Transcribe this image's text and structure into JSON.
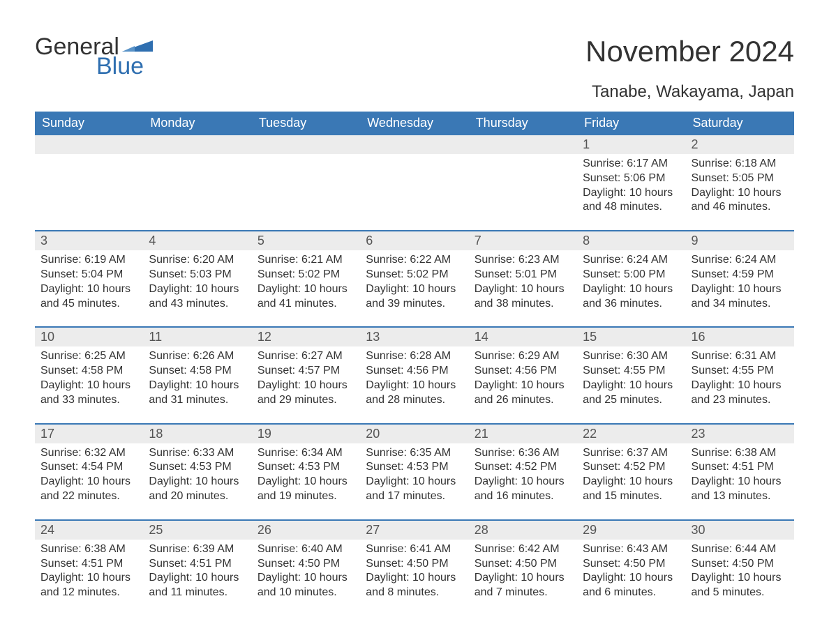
{
  "logo": {
    "text_top": "General",
    "text_bottom": "Blue"
  },
  "title": "November 2024",
  "subtitle": "Tanabe, Wakayama, Japan",
  "colors": {
    "header_bg": "#3a78b5",
    "header_text": "#ffffff",
    "daynum_bg": "#ececec",
    "divider": "#3a78b5",
    "logo_blue": "#2f6fb0",
    "body_text": "#333333"
  },
  "day_headers": [
    "Sunday",
    "Monday",
    "Tuesday",
    "Wednesday",
    "Thursday",
    "Friday",
    "Saturday"
  ],
  "weeks": [
    [
      null,
      null,
      null,
      null,
      null,
      {
        "day": "1",
        "sunrise": "Sunrise: 6:17 AM",
        "sunset": "Sunset: 5:06 PM",
        "daylight1": "Daylight: 10 hours",
        "daylight2": "and 48 minutes."
      },
      {
        "day": "2",
        "sunrise": "Sunrise: 6:18 AM",
        "sunset": "Sunset: 5:05 PM",
        "daylight1": "Daylight: 10 hours",
        "daylight2": "and 46 minutes."
      }
    ],
    [
      {
        "day": "3",
        "sunrise": "Sunrise: 6:19 AM",
        "sunset": "Sunset: 5:04 PM",
        "daylight1": "Daylight: 10 hours",
        "daylight2": "and 45 minutes."
      },
      {
        "day": "4",
        "sunrise": "Sunrise: 6:20 AM",
        "sunset": "Sunset: 5:03 PM",
        "daylight1": "Daylight: 10 hours",
        "daylight2": "and 43 minutes."
      },
      {
        "day": "5",
        "sunrise": "Sunrise: 6:21 AM",
        "sunset": "Sunset: 5:02 PM",
        "daylight1": "Daylight: 10 hours",
        "daylight2": "and 41 minutes."
      },
      {
        "day": "6",
        "sunrise": "Sunrise: 6:22 AM",
        "sunset": "Sunset: 5:02 PM",
        "daylight1": "Daylight: 10 hours",
        "daylight2": "and 39 minutes."
      },
      {
        "day": "7",
        "sunrise": "Sunrise: 6:23 AM",
        "sunset": "Sunset: 5:01 PM",
        "daylight1": "Daylight: 10 hours",
        "daylight2": "and 38 minutes."
      },
      {
        "day": "8",
        "sunrise": "Sunrise: 6:24 AM",
        "sunset": "Sunset: 5:00 PM",
        "daylight1": "Daylight: 10 hours",
        "daylight2": "and 36 minutes."
      },
      {
        "day": "9",
        "sunrise": "Sunrise: 6:24 AM",
        "sunset": "Sunset: 4:59 PM",
        "daylight1": "Daylight: 10 hours",
        "daylight2": "and 34 minutes."
      }
    ],
    [
      {
        "day": "10",
        "sunrise": "Sunrise: 6:25 AM",
        "sunset": "Sunset: 4:58 PM",
        "daylight1": "Daylight: 10 hours",
        "daylight2": "and 33 minutes."
      },
      {
        "day": "11",
        "sunrise": "Sunrise: 6:26 AM",
        "sunset": "Sunset: 4:58 PM",
        "daylight1": "Daylight: 10 hours",
        "daylight2": "and 31 minutes."
      },
      {
        "day": "12",
        "sunrise": "Sunrise: 6:27 AM",
        "sunset": "Sunset: 4:57 PM",
        "daylight1": "Daylight: 10 hours",
        "daylight2": "and 29 minutes."
      },
      {
        "day": "13",
        "sunrise": "Sunrise: 6:28 AM",
        "sunset": "Sunset: 4:56 PM",
        "daylight1": "Daylight: 10 hours",
        "daylight2": "and 28 minutes."
      },
      {
        "day": "14",
        "sunrise": "Sunrise: 6:29 AM",
        "sunset": "Sunset: 4:56 PM",
        "daylight1": "Daylight: 10 hours",
        "daylight2": "and 26 minutes."
      },
      {
        "day": "15",
        "sunrise": "Sunrise: 6:30 AM",
        "sunset": "Sunset: 4:55 PM",
        "daylight1": "Daylight: 10 hours",
        "daylight2": "and 25 minutes."
      },
      {
        "day": "16",
        "sunrise": "Sunrise: 6:31 AM",
        "sunset": "Sunset: 4:55 PM",
        "daylight1": "Daylight: 10 hours",
        "daylight2": "and 23 minutes."
      }
    ],
    [
      {
        "day": "17",
        "sunrise": "Sunrise: 6:32 AM",
        "sunset": "Sunset: 4:54 PM",
        "daylight1": "Daylight: 10 hours",
        "daylight2": "and 22 minutes."
      },
      {
        "day": "18",
        "sunrise": "Sunrise: 6:33 AM",
        "sunset": "Sunset: 4:53 PM",
        "daylight1": "Daylight: 10 hours",
        "daylight2": "and 20 minutes."
      },
      {
        "day": "19",
        "sunrise": "Sunrise: 6:34 AM",
        "sunset": "Sunset: 4:53 PM",
        "daylight1": "Daylight: 10 hours",
        "daylight2": "and 19 minutes."
      },
      {
        "day": "20",
        "sunrise": "Sunrise: 6:35 AM",
        "sunset": "Sunset: 4:53 PM",
        "daylight1": "Daylight: 10 hours",
        "daylight2": "and 17 minutes."
      },
      {
        "day": "21",
        "sunrise": "Sunrise: 6:36 AM",
        "sunset": "Sunset: 4:52 PM",
        "daylight1": "Daylight: 10 hours",
        "daylight2": "and 16 minutes."
      },
      {
        "day": "22",
        "sunrise": "Sunrise: 6:37 AM",
        "sunset": "Sunset: 4:52 PM",
        "daylight1": "Daylight: 10 hours",
        "daylight2": "and 15 minutes."
      },
      {
        "day": "23",
        "sunrise": "Sunrise: 6:38 AM",
        "sunset": "Sunset: 4:51 PM",
        "daylight1": "Daylight: 10 hours",
        "daylight2": "and 13 minutes."
      }
    ],
    [
      {
        "day": "24",
        "sunrise": "Sunrise: 6:38 AM",
        "sunset": "Sunset: 4:51 PM",
        "daylight1": "Daylight: 10 hours",
        "daylight2": "and 12 minutes."
      },
      {
        "day": "25",
        "sunrise": "Sunrise: 6:39 AM",
        "sunset": "Sunset: 4:51 PM",
        "daylight1": "Daylight: 10 hours",
        "daylight2": "and 11 minutes."
      },
      {
        "day": "26",
        "sunrise": "Sunrise: 6:40 AM",
        "sunset": "Sunset: 4:50 PM",
        "daylight1": "Daylight: 10 hours",
        "daylight2": "and 10 minutes."
      },
      {
        "day": "27",
        "sunrise": "Sunrise: 6:41 AM",
        "sunset": "Sunset: 4:50 PM",
        "daylight1": "Daylight: 10 hours",
        "daylight2": "and 8 minutes."
      },
      {
        "day": "28",
        "sunrise": "Sunrise: 6:42 AM",
        "sunset": "Sunset: 4:50 PM",
        "daylight1": "Daylight: 10 hours",
        "daylight2": "and 7 minutes."
      },
      {
        "day": "29",
        "sunrise": "Sunrise: 6:43 AM",
        "sunset": "Sunset: 4:50 PM",
        "daylight1": "Daylight: 10 hours",
        "daylight2": "and 6 minutes."
      },
      {
        "day": "30",
        "sunrise": "Sunrise: 6:44 AM",
        "sunset": "Sunset: 4:50 PM",
        "daylight1": "Daylight: 10 hours",
        "daylight2": "and 5 minutes."
      }
    ]
  ]
}
